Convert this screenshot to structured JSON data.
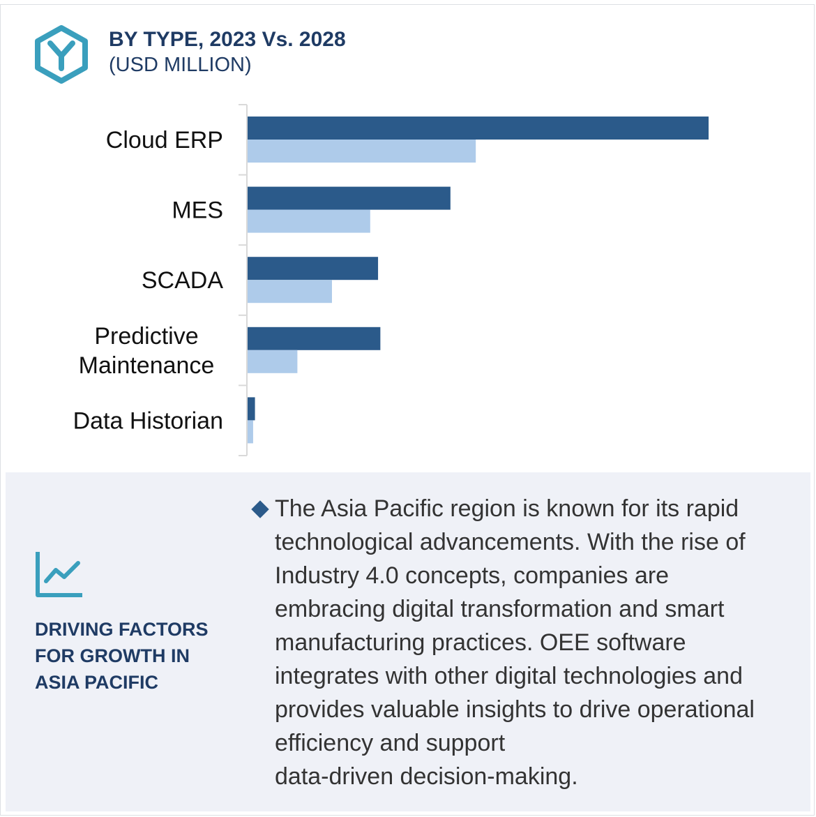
{
  "header": {
    "title": "BY TYPE, 2023 Vs. 2028",
    "subtitle": "(USD MILLION)",
    "icon": "hexagon-y-logo-icon",
    "accent_color": "#3a9fbd"
  },
  "chart_data": {
    "type": "bar",
    "orientation": "horizontal",
    "categories": [
      [
        "Cloud ERP"
      ],
      [
        "MES"
      ],
      [
        "SCADA"
      ],
      [
        "Predictive",
        "Maintenance"
      ],
      [
        "Data Historian"
      ]
    ],
    "series": [
      {
        "color": "#2b5a8a",
        "values": [
          100,
          44,
          28.3,
          28.8,
          1.6
        ]
      },
      {
        "color": "#aecbea",
        "values": [
          49.5,
          26.6,
          18.3,
          10.8,
          1.2
        ]
      }
    ],
    "xlim": [
      0,
      100
    ],
    "grid": false,
    "legend": "none"
  },
  "panel": {
    "icon": "trend-chart-icon",
    "heading_lines": [
      "DRIVING FACTORS",
      "FOR GROWTH IN",
      "ASIA PACIFIC"
    ],
    "bullet_icon": "diamond-bullet-icon",
    "bullet_lines": [
      "The Asia Pacific region is known for its rapid",
      "technological advancements. With the rise of",
      "Industry 4.0 concepts, companies are",
      "embracing digital transformation and smart",
      "manufacturing practices. OEE software",
      "integrates with other digital technologies and",
      "provides valuable insights to drive operational",
      "efficiency and support",
      "data-driven decision-making."
    ]
  }
}
